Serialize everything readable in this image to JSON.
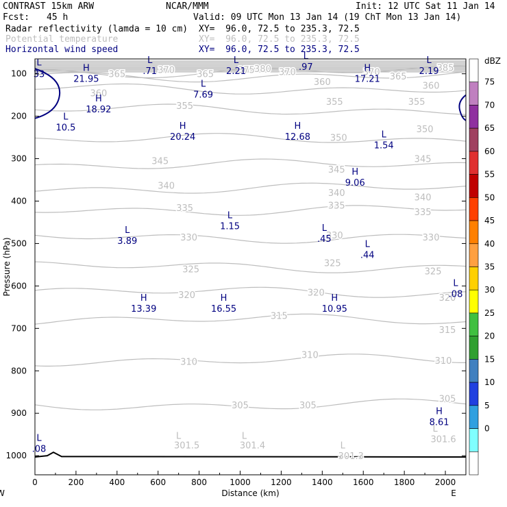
{
  "header": {
    "model": "CONTRAST 15km ARW",
    "org": "NCAR/MMM",
    "init": "Init: 12 UTC Sat 11 Jan 14",
    "fcst_label": "Fcst:",
    "fcst_value": "45 h",
    "valid": "Valid: 09 UTC Mon 13 Jan 14 (19 ChT Mon 13 Jan 14)",
    "fields": [
      {
        "name": "Radar reflectivity (lamda = 10 cm)",
        "xy": "XY=  96.0, 72.5 to 235.3, 72.5",
        "color": "#000000"
      },
      {
        "name": "Potential temperature",
        "xy": "XY=  96.0, 72.5 to 235.3, 72.5",
        "color": "#bdbdbd"
      },
      {
        "name": "Horizontal wind speed",
        "xy": "XY=  96.0, 72.5 to 235.3, 72.5",
        "color": "#000080"
      }
    ]
  },
  "chart_data": {
    "type": "cross-section contour",
    "xlabel": "Distance (km)",
    "ylabel": "Pressure (hPa)",
    "xlim": [
      0,
      2100
    ],
    "ylim": [
      1045,
      65
    ],
    "x_ticks": [
      0,
      200,
      400,
      600,
      800,
      1000,
      1200,
      1400,
      1600,
      1800,
      2000
    ],
    "y_ticks": [
      100,
      200,
      300,
      400,
      500,
      600,
      700,
      800,
      900,
      1000
    ],
    "endpoints": {
      "left": "W",
      "right": "E"
    },
    "theta_contours": [
      {
        "value": 305,
        "p": 880
      },
      {
        "value": 310,
        "p": 775
      },
      {
        "value": 315,
        "p": 680
      },
      {
        "value": 320,
        "p": 615
      },
      {
        "value": 325,
        "p": 555
      },
      {
        "value": 330,
        "p": 485
      },
      {
        "value": 335,
        "p": 420
      },
      {
        "value": 340,
        "p": 370
      },
      {
        "value": 345,
        "p": 315
      },
      {
        "value": 350,
        "p": 255
      },
      {
        "value": 355,
        "p": 185
      },
      {
        "value": 360,
        "p": 135
      },
      {
        "value": 365,
        "p": 105
      },
      {
        "value": 370,
        "p": 95
      }
    ],
    "theta_labels": [
      {
        "text": "305",
        "x": 1000,
        "p": 880
      },
      {
        "text": "305",
        "x": 1330,
        "p": 880
      },
      {
        "text": "305",
        "x": 2010,
        "p": 865
      },
      {
        "text": "310",
        "x": 750,
        "p": 778
      },
      {
        "text": "310",
        "x": 1340,
        "p": 762
      },
      {
        "text": "310",
        "x": 1990,
        "p": 775
      },
      {
        "text": "315",
        "x": 1190,
        "p": 670
      },
      {
        "text": "315",
        "x": 2010,
        "p": 703
      },
      {
        "text": "320",
        "x": 740,
        "p": 620
      },
      {
        "text": "320",
        "x": 1370,
        "p": 615
      },
      {
        "text": "320",
        "x": 2010,
        "p": 627
      },
      {
        "text": "325",
        "x": 760,
        "p": 560
      },
      {
        "text": "325",
        "x": 1450,
        "p": 545
      },
      {
        "text": "325",
        "x": 1940,
        "p": 565
      },
      {
        "text": "330",
        "x": 750,
        "p": 485
      },
      {
        "text": "330",
        "x": 1460,
        "p": 480
      },
      {
        "text": "330",
        "x": 1930,
        "p": 485
      },
      {
        "text": "335",
        "x": 730,
        "p": 415
      },
      {
        "text": "335",
        "x": 1470,
        "p": 410
      },
      {
        "text": "335",
        "x": 1890,
        "p": 425
      },
      {
        "text": "340",
        "x": 640,
        "p": 363
      },
      {
        "text": "340",
        "x": 1470,
        "p": 380
      },
      {
        "text": "340",
        "x": 1890,
        "p": 390
      },
      {
        "text": "345",
        "x": 610,
        "p": 305
      },
      {
        "text": "345",
        "x": 1470,
        "p": 325
      },
      {
        "text": "345",
        "x": 1890,
        "p": 300
      },
      {
        "text": "350",
        "x": 1480,
        "p": 250
      },
      {
        "text": "350",
        "x": 1900,
        "p": 230
      },
      {
        "text": "355",
        "x": 730,
        "p": 175
      },
      {
        "text": "355",
        "x": 1460,
        "p": 165
      },
      {
        "text": "355",
        "x": 1860,
        "p": 165
      },
      {
        "text": "360",
        "x": 310,
        "p": 145
      },
      {
        "text": "360",
        "x": 1400,
        "p": 118
      },
      {
        "text": "360",
        "x": 1930,
        "p": 127
      },
      {
        "text": "365",
        "x": 400,
        "p": 100
      },
      {
        "text": "365",
        "x": 830,
        "p": 100
      },
      {
        "text": "365",
        "x": 1770,
        "p": 105
      },
      {
        "text": "370",
        "x": 640,
        "p": 90
      },
      {
        "text": "370",
        "x": 1230,
        "p": 95
      },
      {
        "text": "370",
        "x": 1640,
        "p": 95
      },
      {
        "text": "375",
        "x": 1030,
        "p": 90
      },
      {
        "text": "380",
        "x": 1110,
        "p": 88
      },
      {
        "text": "385",
        "x": 2000,
        "p": 85
      },
      {
        "text": "301.5",
        "x": 740,
        "p": 975
      },
      {
        "text": "301.4",
        "x": 1060,
        "p": 975
      },
      {
        "text": "301.3",
        "x": 1540,
        "p": 1000
      },
      {
        "text": "301.6",
        "x": 1990,
        "p": 960
      },
      {
        "text": "L",
        "x": 700,
        "p": 952
      },
      {
        "text": "L",
        "x": 1020,
        "p": 952
      },
      {
        "text": "L",
        "x": 1500,
        "p": 975
      },
      {
        "text": "L",
        "x": 1950,
        "p": 935
      }
    ],
    "wind_extrema": [
      {
        "type": "L",
        "value": "",
        "x": 20,
        "p": 80
      },
      {
        "type": "",
        "value": "33",
        "x": 20,
        "p": 100
      },
      {
        "type": "H",
        "value": "21.95",
        "x": 250,
        "p": 93
      },
      {
        "type": "L",
        "value": ".71",
        "x": 560,
        "p": 75
      },
      {
        "type": "L",
        "value": "2.21",
        "x": 980,
        "p": 75
      },
      {
        "type": "L",
        "value": ".97",
        "x": 1320,
        "p": 65
      },
      {
        "type": "H",
        "value": "17.21",
        "x": 1620,
        "p": 93
      },
      {
        "type": "L",
        "value": "2.19",
        "x": 1920,
        "p": 75
      },
      {
        "type": "L",
        "value": "7.69",
        "x": 820,
        "p": 130
      },
      {
        "type": "H",
        "value": "18.92",
        "x": 310,
        "p": 165
      },
      {
        "type": "L",
        "value": "10.5",
        "x": 150,
        "p": 208
      },
      {
        "type": "H",
        "value": "20.24",
        "x": 720,
        "p": 230
      },
      {
        "type": "H",
        "value": "12.68",
        "x": 1280,
        "p": 230
      },
      {
        "type": "L",
        "value": "1.54",
        "x": 1700,
        "p": 250
      },
      {
        "type": "H",
        "value": "9.06",
        "x": 1560,
        "p": 338
      },
      {
        "type": "L",
        "value": "1.15",
        "x": 950,
        "p": 440
      },
      {
        "type": "L",
        "value": "3.89",
        "x": 450,
        "p": 475
      },
      {
        "type": "L",
        "value": ".45",
        "x": 1410,
        "p": 470
      },
      {
        "type": "L",
        "value": ".44",
        "x": 1620,
        "p": 508
      },
      {
        "type": "L",
        "value": ".08",
        "x": 2050,
        "p": 600
      },
      {
        "type": "H",
        "value": "13.39",
        "x": 530,
        "p": 635
      },
      {
        "type": "H",
        "value": "16.55",
        "x": 920,
        "p": 635
      },
      {
        "type": "H",
        "value": "10.95",
        "x": 1460,
        "p": 635
      },
      {
        "type": "H",
        "value": "8.61",
        "x": 1970,
        "p": 902
      },
      {
        "type": "L",
        "value": ".08",
        "x": 20,
        "p": 965
      }
    ],
    "colorbar": {
      "unit": "dBZ",
      "labels": [
        "75",
        "70",
        "65",
        "60",
        "55",
        "50",
        "45",
        "40",
        "35",
        "30",
        "25",
        "20",
        "15",
        "10",
        "5",
        "0"
      ],
      "colors": [
        "#ffffff",
        "#c080c0",
        "#9030a0",
        "#a04060",
        "#e03030",
        "#c00000",
        "#ff4000",
        "#ff8000",
        "#ffa040",
        "#ffd000",
        "#ffff00",
        "#40c040",
        "#30a030",
        "#4080c0",
        "#2040e0",
        "#30a0e0",
        "#80ffff",
        "#ffffff"
      ]
    },
    "colors": {
      "theta": "#bdbdbd",
      "wind": "#000080",
      "ground": "#000000"
    }
  }
}
